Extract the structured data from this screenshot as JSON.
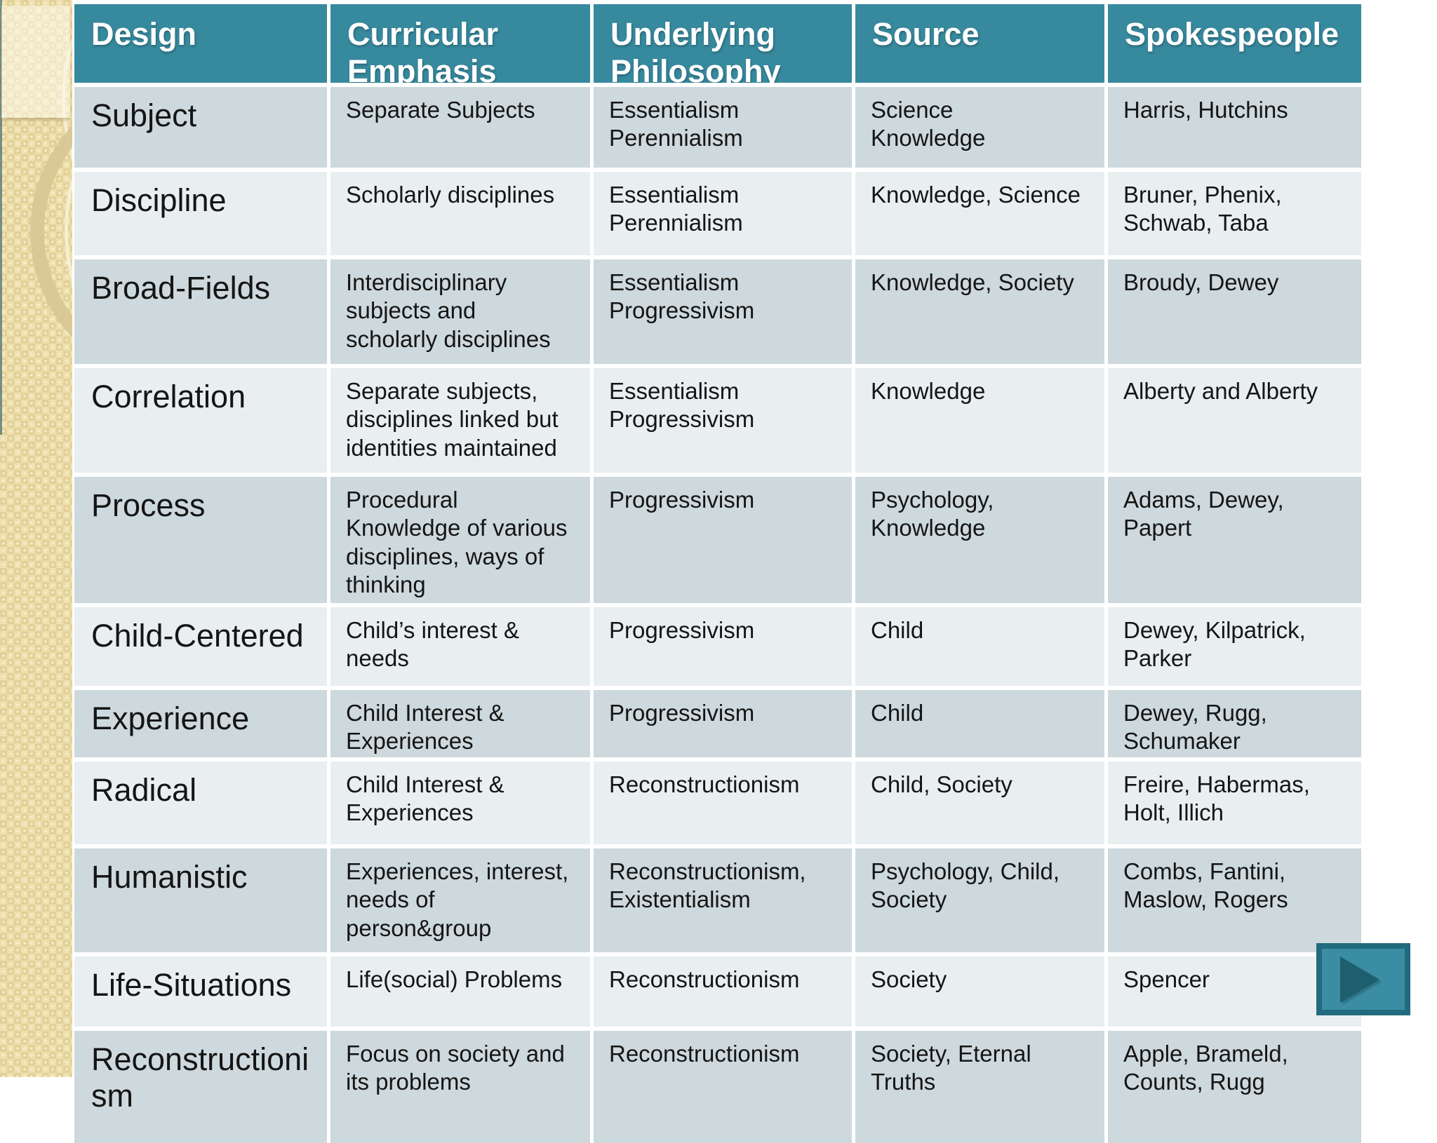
{
  "theme": {
    "header_bg": "#37899e",
    "header_text_color": "#ffffff",
    "row_dark_bg": "#cdd9dc",
    "row_light_bg": "#e9eef0",
    "body_text_color": "#151515",
    "sidebar_color": "#e9d9a6",
    "sidebar_ring_color": "#f6eed0",
    "sidebar_thick_ring_color": "#d8c794",
    "nav_button_face": "#3a8da2",
    "nav_button_border": "#226a7d",
    "nav_button_arrow": "#1d5f6e"
  },
  "table": {
    "headers": [
      "Design",
      "Curricular Emphasis",
      "Underlying Philosophy",
      "Source",
      "Spokespeople"
    ],
    "rows": [
      {
        "design": "Subject",
        "emphasis": "Separate Subjects",
        "philosophy": "Essentialism\nPerennialism",
        "source": "Science\nKnowledge",
        "spokespeople": "Harris, Hutchins"
      },
      {
        "design": "Discipline",
        "emphasis": "Scholarly disciplines",
        "philosophy": "Essentialism\nPerennialism",
        "source": "Knowledge, Science",
        "spokespeople": "Bruner, Phenix,\nSchwab, Taba"
      },
      {
        "design": "Broad-Fields",
        "emphasis": "Interdisciplinary\nsubjects and\nscholarly disciplines",
        "philosophy": "Essentialism\nProgressivism",
        "source": "Knowledge, Society",
        "spokespeople": "Broudy, Dewey"
      },
      {
        "design": "Correlation",
        "emphasis": "Separate subjects,\ndisciplines linked but\nidentities maintained",
        "philosophy": "Essentialism\nProgressivism",
        "source": "Knowledge",
        "spokespeople": "Alberty and Alberty"
      },
      {
        "design": "Process",
        "emphasis": "Procedural\nKnowledge of various\ndisciplines, ways of\nthinking",
        "philosophy": "Progressivism",
        "source": "Psychology,\nKnowledge",
        "spokespeople": "Adams, Dewey,\nPapert"
      },
      {
        "design": "Child-Centered",
        "emphasis": "Child’s interest &\nneeds",
        "philosophy": "Progressivism",
        "source": "Child",
        "spokespeople": "Dewey, Kilpatrick,\nParker"
      },
      {
        "design": "Experience",
        "emphasis": "Child Interest &\nExperiences",
        "philosophy": "Progressivism",
        "source": "Child",
        "spokespeople": "Dewey, Rugg,\nSchumaker"
      },
      {
        "design": "Radical",
        "emphasis": "Child Interest &\nExperiences",
        "philosophy": "Reconstructionism",
        "source": "Child, Society",
        "spokespeople": "Freire, Habermas,\nHolt, Illich"
      },
      {
        "design": "Humanistic",
        "emphasis": "Experiences, interest,\nneeds of\nperson&group",
        "philosophy": "Reconstructionism,\nExistentialism",
        "source": "Psychology, Child,\nSociety",
        "spokespeople": "Combs, Fantini,\nMaslow, Rogers"
      },
      {
        "design": "Life-Situations",
        "emphasis": "Life(social) Problems",
        "philosophy": "Reconstructionism",
        "source": "Society",
        "spokespeople": "Spencer"
      },
      {
        "design": "Reconstructionism",
        "emphasis": "Focus on society and\nits problems",
        "philosophy": "Reconstructionism",
        "source": "Society, Eternal\nTruths",
        "spokespeople": "Apple, Brameld,\nCounts, Rugg"
      }
    ]
  },
  "nav_button": {
    "icon": "play-triangle",
    "action": "next-slide"
  }
}
